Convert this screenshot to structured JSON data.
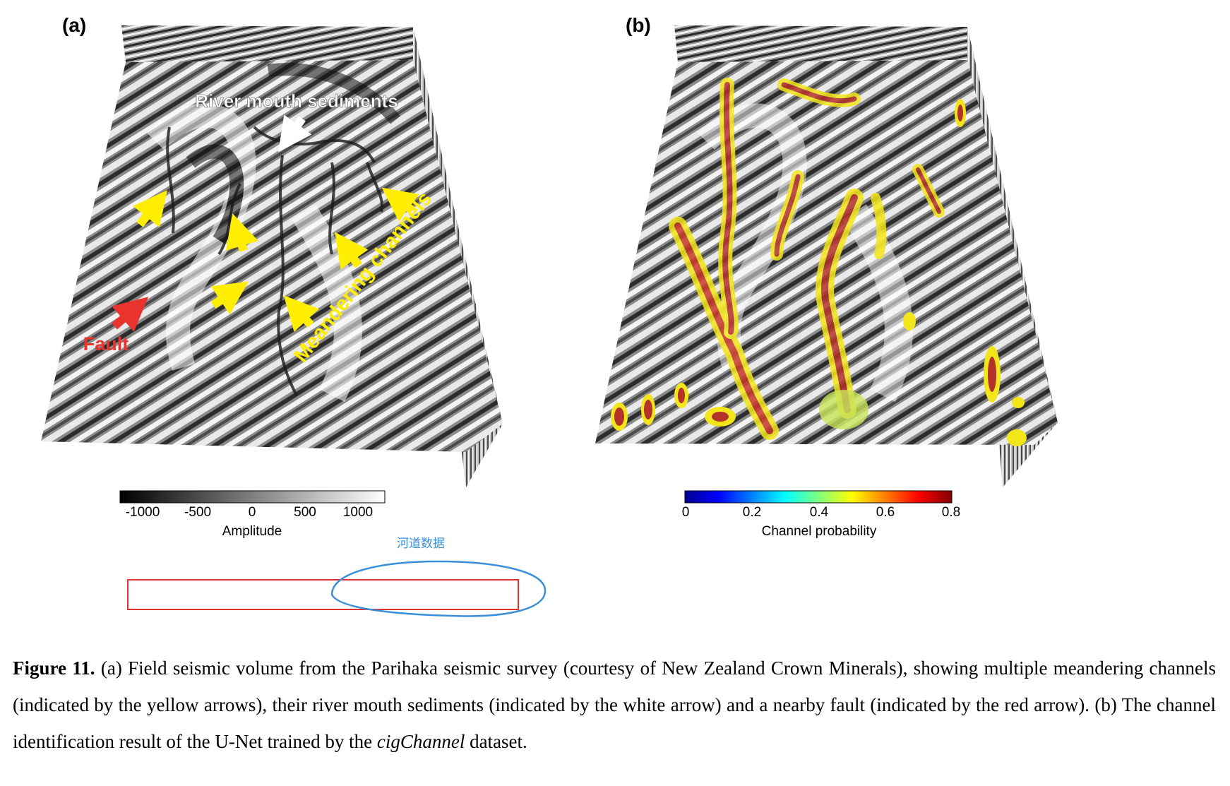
{
  "panels": {
    "a": {
      "label": "(a)",
      "annotations": {
        "river_mouth": "River mouth sediments",
        "meandering": "Meandering channels",
        "fault": "Fault"
      },
      "colorbar": {
        "ticks": [
          "-1000",
          "-500",
          "0",
          "500",
          "1000"
        ],
        "title": "Amplitude",
        "colormap": "gray"
      }
    },
    "b": {
      "label": "(b)",
      "colorbar": {
        "ticks": [
          "0",
          "0.2",
          "0.4",
          "0.6",
          "0.8"
        ],
        "title": "Channel probability",
        "colormap": "jet"
      }
    }
  },
  "handwritten_note": "河道数据",
  "caption": {
    "figure_label": "Figure 11.",
    "part_a_prefix": "(a)",
    "highlighted": "Field seismic volume from the Parihaka seismic",
    "text_after_highlight": " survey (courtesy of New Zealand Crown Minerals), showing multiple meandering channels (indicated by the yellow arrows), their river mouth sediments (indicated by the white arrow) and a nearby fault (indicated by the red arrow). (b) The channel identification result of the U-Net trained by the ",
    "italic_term": "cigChannel",
    "ending": " dataset."
  },
  "colors": {
    "fault_arrow": "#e8332e",
    "channel_arrow": "#ffee00",
    "sediment_arrow": "#ffffff",
    "caption_box": "#e03131",
    "pen_annotation": "#3a8fd8"
  }
}
